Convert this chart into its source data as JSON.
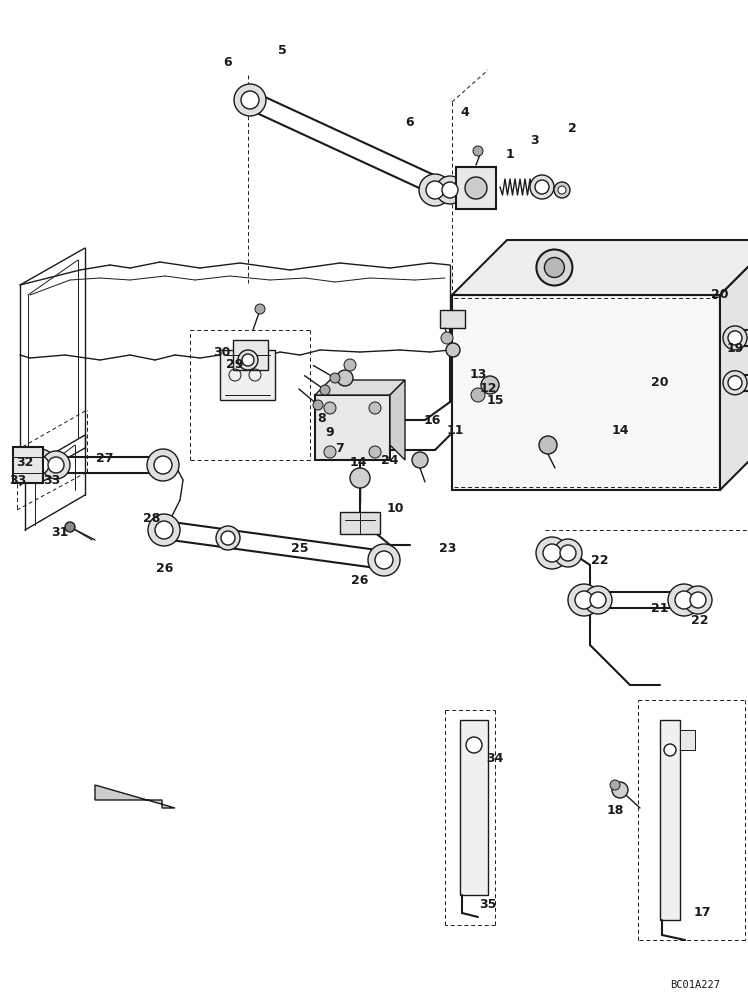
{
  "bg_color": "#ffffff",
  "line_color": "#1a1a1a",
  "diagram_code": "BC01A227",
  "figsize": [
    7.48,
    10.0
  ],
  "dpi": 100
}
